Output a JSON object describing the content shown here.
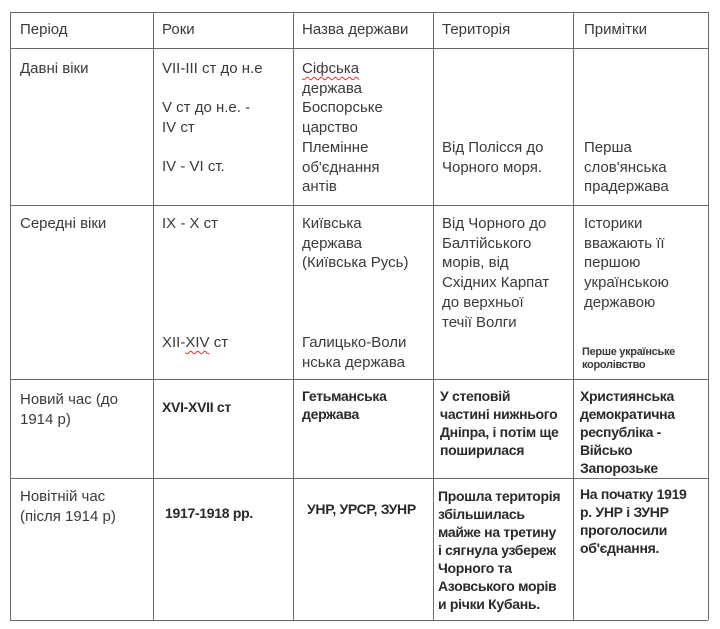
{
  "headers": [
    "Період",
    "Роки",
    "Назва держави",
    "Територія",
    "Примітки"
  ],
  "rows": [
    {
      "period": "Давні віки",
      "years": [
        "VII-III ст до н.е",
        "V ст до н.е. -\nIV ст",
        "IV - VI ст."
      ],
      "state_first_word": "Сіфська",
      "state": "держава\nБоспорське\nцарство\nПлемінне\nоб'єднання\nантів",
      "territory": "Від Полісся до\nЧорного моря.",
      "notes": "Перша\nслов'янська\nпрадержава"
    },
    {
      "period": "Середні віки",
      "years": [
        "IX - X ст",
        "XII-",
        "XIV",
        " ст"
      ],
      "state": [
        "Київська\nдержава\n(Київська Русь)",
        "Галицько-Воли\nнська держава"
      ],
      "territory": "Від Чорного до\nБалтійського\nморів, від\nСхідних Карпат\nдо верхньої\nтечії Волги",
      "notes": "Історики\nвважають її\nпершою\nукраїнською\nдержавою",
      "notes_small": "Перше українське\nкоролівство"
    },
    {
      "period": "Новий час (до\n1914 р)",
      "years": "XVI-XVII ст",
      "state": "Гетьманська\nдержава",
      "territory": "У степовій\nчастині нижнього\nДніпра, і потім ще\nпоширилася",
      "notes": "Християнська\nдемократична\nреспубліка -\nВійсько\nЗапорозьке"
    },
    {
      "period": "Новітній час\n(після 1914 р)",
      "years": "1917-1918 рр.",
      "state": "УНР, УРСР, ЗУНР",
      "territory": "Прошла територія\nзбільшилась\nмайже на третину\nі сягнула узбереж\nЧорного та\nАзовського морів\nи річки Кубань.",
      "notes": "На початку 1919\nр. УНР і ЗУНР\nпроголосили\nоб'єднання."
    }
  ]
}
